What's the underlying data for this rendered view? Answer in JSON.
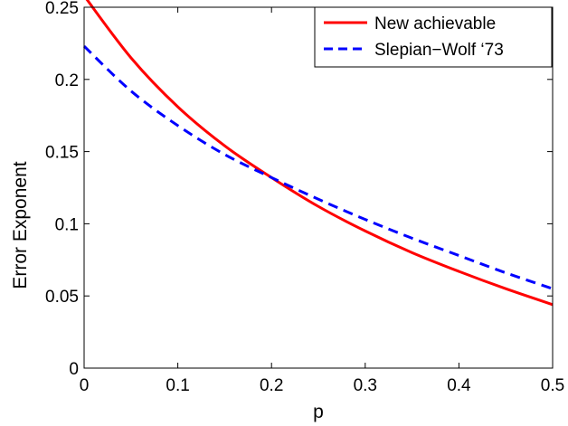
{
  "chart_data": {
    "type": "line",
    "xlabel": "p",
    "ylabel": "Error Exponent",
    "xlim": [
      0,
      0.5
    ],
    "ylim": [
      0,
      0.25
    ],
    "x_ticks": [
      "0",
      "0.1",
      "0.2",
      "0.3",
      "0.4",
      "0.5"
    ],
    "y_ticks": [
      "0",
      "0.05",
      "0.1",
      "0.15",
      "0.2",
      "0.25"
    ],
    "grid": false,
    "legend_position": "top-right",
    "series": [
      {
        "name": "New achievable",
        "color": "#ff0000",
        "style": "solid",
        "x": [
          0,
          0.05,
          0.1,
          0.15,
          0.2,
          0.25,
          0.3,
          0.35,
          0.4,
          0.45,
          0.5
        ],
        "y": [
          0.258,
          0.215,
          0.181,
          0.154,
          0.132,
          0.112,
          0.095,
          0.08,
          0.067,
          0.055,
          0.044
        ]
      },
      {
        "name": "Slepian−Wolf ‘73",
        "color": "#0000ff",
        "style": "dashed",
        "x": [
          0,
          0.05,
          0.1,
          0.15,
          0.2,
          0.25,
          0.3,
          0.35,
          0.4,
          0.45,
          0.5
        ],
        "y": [
          0.223,
          0.192,
          0.168,
          0.148,
          0.132,
          0.117,
          0.103,
          0.09,
          0.078,
          0.066,
          0.055
        ]
      }
    ]
  }
}
